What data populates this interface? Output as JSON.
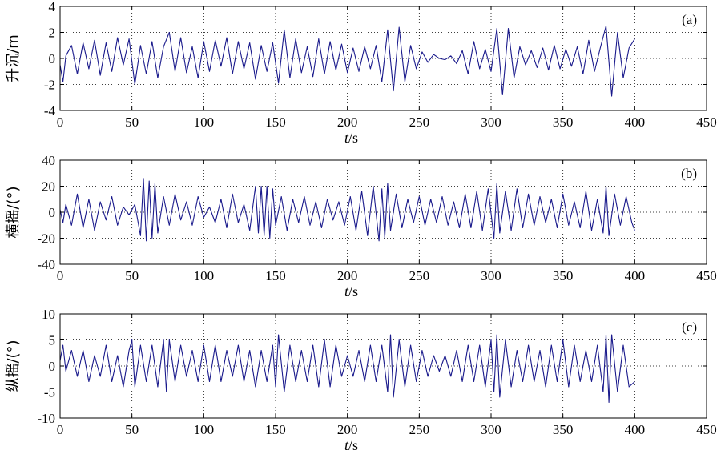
{
  "chart_data": [
    {
      "type": "line",
      "panel_label": "(a)",
      "xlabel_var": "t",
      "xlabel_unit": "/s",
      "ylabel": "升沉/m",
      "xlim": [
        0,
        450
      ],
      "ylim": [
        -4,
        4
      ],
      "x_ticks": [
        0,
        50,
        100,
        150,
        200,
        250,
        300,
        350,
        400,
        450
      ],
      "y_ticks": [
        4,
        2,
        0,
        -2,
        -4
      ],
      "grid": "dotted",
      "line_color": "#1a1a8c",
      "series": [
        {
          "x": [
            0,
            2,
            4,
            8,
            12,
            16,
            20,
            24,
            28,
            32,
            36,
            40,
            44,
            48,
            52,
            56,
            60,
            64,
            68,
            72,
            76,
            80,
            84,
            88,
            92,
            96,
            100,
            104,
            108,
            112,
            116,
            120,
            124,
            128,
            132,
            136,
            140,
            144,
            148,
            152,
            156,
            160,
            164,
            168,
            172,
            176,
            180,
            184,
            188,
            192,
            196,
            200,
            204,
            208,
            212,
            216,
            220,
            224,
            228,
            232,
            236,
            240,
            244,
            248,
            252,
            256,
            260,
            264,
            268,
            272,
            276,
            280,
            284,
            288,
            292,
            296,
            300,
            304,
            308,
            312,
            316,
            320,
            324,
            328,
            332,
            336,
            340,
            344,
            348,
            352,
            356,
            360,
            364,
            368,
            372,
            376,
            380,
            384,
            388,
            392,
            396,
            400
          ],
          "y": [
            -0.5,
            -1.8,
            0.2,
            1.0,
            -1.2,
            1.2,
            -0.8,
            1.4,
            -1.3,
            1.2,
            -1.0,
            1.6,
            -0.5,
            1.5,
            -2.0,
            1.0,
            -1.2,
            1.3,
            -1.5,
            0.9,
            2.0,
            -1.0,
            1.6,
            -1.1,
            0.9,
            -1.5,
            1.3,
            -1.0,
            1.4,
            -0.6,
            1.6,
            -1.2,
            1.3,
            -0.8,
            1.2,
            -1.6,
            1.0,
            -1.0,
            1.2,
            -1.9,
            2.2,
            -1.5,
            1.5,
            -1.1,
            0.9,
            -1.4,
            1.5,
            -1.2,
            1.3,
            -0.9,
            1.1,
            -1.1,
            0.8,
            -1.0,
            0.9,
            -0.8,
            1.0,
            -1.8,
            2.2,
            -2.5,
            2.4,
            -1.8,
            1.0,
            -0.8,
            0.5,
            -0.3,
            0.3,
            0.0,
            -0.1,
            0.2,
            -0.4,
            0.6,
            -1.2,
            1.3,
            -0.8,
            0.7,
            -1.0,
            2.3,
            -2.8,
            2.3,
            -1.5,
            0.9,
            -0.5,
            0.6,
            -0.7,
            0.8,
            -0.9,
            1.0,
            -0.8,
            0.7,
            -0.6,
            0.9,
            -1.2,
            1.4,
            -1.0,
            0.8,
            2.5,
            -2.9,
            2.0,
            -1.5,
            0.8,
            1.5
          ]
        }
      ]
    },
    {
      "type": "line",
      "panel_label": "(b)",
      "xlabel_var": "t",
      "xlabel_unit": "/s",
      "ylabel": "横摇/(°)",
      "xlim": [
        0,
        450
      ],
      "ylim": [
        -40,
        40
      ],
      "x_ticks": [
        0,
        50,
        100,
        150,
        200,
        250,
        300,
        350,
        400,
        450
      ],
      "y_ticks": [
        40,
        20,
        0,
        -20,
        -40
      ],
      "grid": "dotted",
      "line_color": "#1a1a8c",
      "series": [
        {
          "x": [
            0,
            2,
            4,
            8,
            12,
            16,
            20,
            24,
            28,
            32,
            36,
            40,
            44,
            48,
            52,
            56,
            58,
            60,
            62,
            64,
            66,
            68,
            72,
            76,
            80,
            84,
            88,
            92,
            96,
            100,
            104,
            108,
            112,
            116,
            120,
            124,
            128,
            132,
            136,
            138,
            140,
            142,
            144,
            146,
            148,
            150,
            154,
            158,
            162,
            166,
            170,
            174,
            178,
            182,
            186,
            190,
            194,
            198,
            202,
            206,
            210,
            214,
            218,
            222,
            224,
            226,
            228,
            230,
            234,
            238,
            242,
            246,
            250,
            254,
            258,
            262,
            266,
            270,
            274,
            278,
            282,
            286,
            290,
            294,
            298,
            302,
            304,
            306,
            310,
            314,
            318,
            322,
            326,
            330,
            334,
            338,
            342,
            346,
            350,
            354,
            358,
            362,
            366,
            370,
            374,
            378,
            380,
            382,
            386,
            390,
            394,
            398,
            400
          ],
          "y": [
            2,
            -8,
            6,
            -10,
            14,
            -12,
            10,
            -14,
            8,
            -6,
            12,
            -10,
            4,
            -2,
            6,
            -18,
            26,
            -22,
            24,
            -20,
            22,
            -16,
            12,
            -10,
            14,
            -6,
            8,
            -10,
            12,
            -4,
            4,
            -8,
            10,
            -12,
            14,
            -8,
            6,
            -14,
            20,
            -16,
            20,
            -18,
            20,
            -20,
            18,
            -10,
            12,
            -14,
            10,
            -8,
            12,
            -10,
            8,
            -12,
            10,
            -6,
            8,
            -10,
            12,
            -14,
            16,
            -18,
            20,
            -22,
            18,
            -20,
            22,
            -14,
            14,
            -12,
            10,
            -8,
            12,
            -10,
            10,
            -8,
            12,
            -10,
            8,
            -12,
            14,
            -12,
            16,
            -14,
            18,
            -20,
            22,
            -16,
            16,
            -14,
            18,
            -12,
            14,
            -10,
            12,
            -8,
            10,
            -12,
            14,
            -10,
            8,
            -12,
            16,
            -14,
            10,
            -16,
            20,
            -18,
            14,
            -10,
            12,
            -8,
            -14
          ]
        }
      ]
    },
    {
      "type": "line",
      "panel_label": "(c)",
      "xlabel_var": "t",
      "xlabel_unit": "/s",
      "ylabel": "纵摇/(°)",
      "xlim": [
        0,
        450
      ],
      "ylim": [
        -10,
        10
      ],
      "x_ticks": [
        0,
        50,
        100,
        150,
        200,
        250,
        300,
        350,
        400,
        450
      ],
      "y_ticks": [
        10,
        5,
        0,
        -5,
        -10
      ],
      "grid": "dotted",
      "line_color": "#1a1a8c",
      "series": [
        {
          "x": [
            0,
            2,
            4,
            8,
            12,
            16,
            20,
            24,
            28,
            32,
            36,
            40,
            44,
            48,
            50,
            52,
            56,
            60,
            64,
            68,
            72,
            74,
            76,
            80,
            84,
            88,
            92,
            96,
            100,
            104,
            108,
            112,
            116,
            120,
            124,
            128,
            132,
            136,
            140,
            144,
            148,
            150,
            152,
            156,
            160,
            164,
            168,
            172,
            176,
            180,
            184,
            188,
            192,
            196,
            200,
            204,
            208,
            212,
            216,
            220,
            224,
            228,
            230,
            232,
            236,
            240,
            244,
            248,
            252,
            256,
            260,
            264,
            268,
            272,
            276,
            280,
            284,
            288,
            292,
            296,
            300,
            302,
            304,
            306,
            310,
            314,
            318,
            322,
            326,
            330,
            334,
            338,
            342,
            346,
            350,
            354,
            358,
            362,
            366,
            370,
            374,
            378,
            380,
            382,
            384,
            388,
            392,
            396,
            400
          ],
          "y": [
            1,
            4,
            -1,
            3,
            -2,
            3,
            -3,
            2,
            -2,
            4,
            -3,
            2,
            -4,
            3,
            5,
            -4,
            4,
            -3,
            4,
            -4,
            5,
            -5,
            5,
            -3,
            4,
            -2,
            3,
            -3,
            4,
            -3,
            4,
            -3,
            3,
            -2,
            4,
            -3,
            3,
            -4,
            3,
            -3,
            4,
            -4,
            6,
            -5,
            4,
            -3,
            3,
            -3,
            4,
            -4,
            5,
            -4,
            4,
            -2,
            2,
            -2,
            3,
            -3,
            4,
            -3,
            4,
            -5,
            6,
            -6,
            5,
            -4,
            4,
            -3,
            3,
            -2,
            2,
            -1,
            2,
            -2,
            3,
            -3,
            4,
            -3,
            4,
            -4,
            5,
            -5,
            6,
            -6,
            5,
            -4,
            3,
            -3,
            4,
            -3,
            3,
            -4,
            4,
            -3,
            5,
            -4,
            4,
            -3,
            3,
            -3,
            4,
            -5,
            6,
            -7,
            6,
            -5,
            4,
            -4,
            -3
          ]
        }
      ]
    }
  ]
}
